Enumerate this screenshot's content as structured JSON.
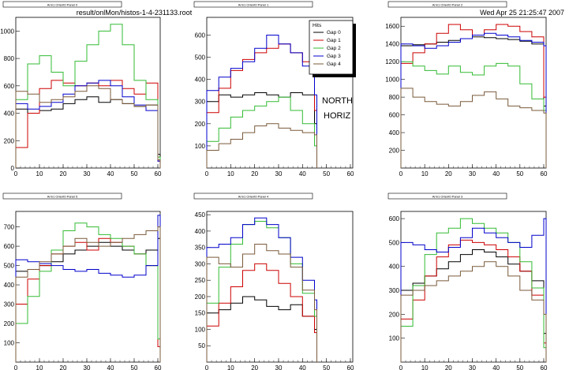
{
  "header": {
    "file": "result/onlMon/histos-1-4-231133.root",
    "date": "Wed Apr 25 21:25:47 2007"
  },
  "annotation": {
    "line1": "NORTH",
    "line2": "HORIZ"
  },
  "legend": {
    "title": "Hits",
    "entries": [
      "Gap 0",
      "Gap 1",
      "Gap 2",
      "Gap 3",
      "Gap 4"
    ],
    "colors": [
      "#000000",
      "#cc0000",
      "#33bb33",
      "#0000cc",
      "#7a5a3a"
    ]
  },
  "chart_data": [
    {
      "type": "line",
      "title": "Arm1 Orient0 Panel 0",
      "xlim": [
        0,
        61
      ],
      "ylim": [
        0,
        1100
      ],
      "xticks": [
        0,
        10,
        20,
        30,
        40,
        50,
        60
      ],
      "yticks": [
        0,
        200,
        400,
        600,
        800,
        1000
      ],
      "x": [
        0,
        5,
        10,
        15,
        20,
        25,
        30,
        35,
        40,
        45,
        50,
        55,
        60
      ],
      "series": [
        {
          "name": "Gap 0",
          "values": [
            430,
            400,
            420,
            430,
            470,
            500,
            520,
            480,
            500,
            470,
            450,
            460,
            100
          ]
        },
        {
          "name": "Gap 1",
          "values": [
            150,
            400,
            580,
            640,
            620,
            600,
            620,
            600,
            640,
            580,
            540,
            620,
            50
          ]
        },
        {
          "name": "Gap 2",
          "values": [
            500,
            760,
            820,
            700,
            600,
            780,
            900,
            1000,
            1050,
            900,
            640,
            500,
            80
          ]
        },
        {
          "name": "Gap 3",
          "values": [
            470,
            430,
            450,
            480,
            540,
            600,
            620,
            640,
            600,
            520,
            460,
            420,
            50
          ]
        },
        {
          "name": "Gap 4",
          "values": [
            560,
            540,
            480,
            500,
            520,
            560,
            600,
            580,
            500,
            470,
            450,
            460,
            60
          ]
        }
      ]
    },
    {
      "type": "line",
      "title": "Arm1 Orient0 Panel 1",
      "xlim": [
        0,
        61
      ],
      "ylim": [
        0,
        680
      ],
      "xticks": [
        0,
        10,
        20,
        30,
        40,
        50,
        60
      ],
      "yticks": [
        100,
        200,
        300,
        400,
        500,
        600
      ],
      "x": [
        0,
        5,
        10,
        15,
        20,
        25,
        30,
        35,
        40,
        45
      ],
      "series": [
        {
          "name": "Gap 0",
          "values": [
            300,
            330,
            320,
            330,
            340,
            330,
            320,
            340,
            330,
            200
          ]
        },
        {
          "name": "Gap 1",
          "values": [
            250,
            360,
            440,
            490,
            520,
            540,
            560,
            520,
            480,
            260
          ]
        },
        {
          "name": "Gap 2",
          "values": [
            120,
            180,
            230,
            260,
            280,
            300,
            320,
            260,
            200,
            100
          ]
        },
        {
          "name": "Gap 3",
          "values": [
            350,
            410,
            450,
            480,
            540,
            600,
            560,
            520,
            460,
            330
          ]
        },
        {
          "name": "Gap 4",
          "values": [
            80,
            110,
            130,
            160,
            190,
            200,
            180,
            170,
            160,
            150
          ]
        }
      ]
    },
    {
      "type": "line",
      "title": "Arm1 Orient0 Panel 2",
      "xlim": [
        0,
        61
      ],
      "ylim": [
        0,
        1700
      ],
      "xticks": [
        0,
        10,
        20,
        30,
        40,
        50,
        60
      ],
      "yticks": [
        200,
        400,
        600,
        800,
        1000,
        1200,
        1400,
        1600
      ],
      "x": [
        0,
        5,
        10,
        15,
        20,
        25,
        30,
        35,
        40,
        45,
        50,
        55,
        60
      ],
      "series": [
        {
          "name": "Gap 0",
          "values": [
            1380,
            1390,
            1400,
            1420,
            1440,
            1460,
            1480,
            1470,
            1460,
            1450,
            1430,
            1400,
            700
          ]
        },
        {
          "name": "Gap 1",
          "values": [
            1180,
            1300,
            1400,
            1520,
            1620,
            1560,
            1500,
            1560,
            1620,
            1600,
            1540,
            1480,
            800
          ]
        },
        {
          "name": "Gap 2",
          "values": [
            1200,
            1150,
            1100,
            1060,
            1150,
            1080,
            1050,
            1150,
            1180,
            1150,
            950,
            780,
            650
          ]
        },
        {
          "name": "Gap 3",
          "values": [
            1400,
            1380,
            1350,
            1380,
            1420,
            1460,
            1500,
            1520,
            1500,
            1480,
            1440,
            1420,
            1380
          ]
        },
        {
          "name": "Gap 4",
          "values": [
            900,
            800,
            750,
            720,
            700,
            750,
            820,
            860,
            780,
            700,
            680,
            650,
            620
          ]
        }
      ]
    },
    {
      "type": "line",
      "title": "Arm1 Orient0 Panel 5",
      "xlim": [
        0,
        61
      ],
      "ylim": [
        0,
        780
      ],
      "xticks": [
        0,
        10,
        20,
        30,
        40,
        50,
        60
      ],
      "yticks": [
        100,
        200,
        300,
        400,
        500,
        600,
        700
      ],
      "x": [
        0,
        5,
        10,
        15,
        20,
        25,
        30,
        35,
        40,
        45,
        50,
        55,
        60
      ],
      "series": [
        {
          "name": "Gap 0",
          "values": [
            470,
            480,
            500,
            520,
            560,
            580,
            600,
            620,
            600,
            580,
            560,
            580,
            640
          ]
        },
        {
          "name": "Gap 1",
          "values": [
            300,
            430,
            500,
            560,
            600,
            620,
            580,
            640,
            620,
            600,
            560,
            500,
            80
          ]
        },
        {
          "name": "Gap 2",
          "values": [
            200,
            340,
            470,
            580,
            680,
            720,
            700,
            660,
            640,
            600,
            560,
            500,
            120
          ]
        },
        {
          "name": "Gap 3",
          "values": [
            530,
            520,
            510,
            500,
            480,
            470,
            480,
            460,
            450,
            440,
            450,
            500,
            760
          ]
        },
        {
          "name": "Gap 4",
          "values": [
            440,
            480,
            520,
            560,
            600,
            640,
            620,
            600,
            620,
            640,
            660,
            680,
            700
          ]
        }
      ]
    },
    {
      "type": "line",
      "title": "Arm1 Orient0 Panel 4",
      "xlim": [
        0,
        61
      ],
      "ylim": [
        0,
        460
      ],
      "xticks": [
        0,
        10,
        20,
        30,
        40,
        50,
        60
      ],
      "yticks": [
        50,
        100,
        150,
        200,
        250,
        300,
        350,
        400,
        450
      ],
      "x": [
        0,
        5,
        10,
        15,
        20,
        25,
        30,
        35,
        40,
        45
      ],
      "series": [
        {
          "name": "Gap 0",
          "values": [
            150,
            160,
            180,
            200,
            190,
            170,
            160,
            175,
            140,
            100
          ]
        },
        {
          "name": "Gap 1",
          "values": [
            110,
            180,
            230,
            280,
            300,
            280,
            240,
            200,
            140,
            90
          ]
        },
        {
          "name": "Gap 2",
          "values": [
            180,
            290,
            360,
            420,
            430,
            410,
            380,
            300,
            210,
            140
          ]
        },
        {
          "name": "Gap 3",
          "values": [
            350,
            360,
            380,
            420,
            440,
            420,
            380,
            320,
            250,
            190
          ]
        },
        {
          "name": "Gap 4",
          "values": [
            320,
            300,
            290,
            330,
            360,
            340,
            330,
            290,
            220,
            160
          ]
        }
      ]
    },
    {
      "type": "line",
      "title": "Arm1 Orient0 Panel 3",
      "xlim": [
        0,
        61
      ],
      "ylim": [
        0,
        630
      ],
      "xticks": [
        0,
        10,
        20,
        30,
        40,
        50,
        60
      ],
      "yticks": [
        100,
        200,
        300,
        400,
        500,
        600
      ],
      "x": [
        0,
        5,
        10,
        15,
        20,
        25,
        30,
        35,
        40,
        45,
        50,
        55,
        60
      ],
      "series": [
        {
          "name": "Gap 0",
          "values": [
            300,
            330,
            360,
            390,
            420,
            450,
            470,
            460,
            440,
            410,
            380,
            340,
            120
          ]
        },
        {
          "name": "Gap 1",
          "values": [
            180,
            260,
            360,
            440,
            490,
            510,
            500,
            490,
            470,
            440,
            380,
            280,
            80
          ]
        },
        {
          "name": "Gap 2",
          "values": [
            150,
            320,
            450,
            540,
            560,
            600,
            580,
            560,
            540,
            500,
            420,
            310,
            60
          ]
        },
        {
          "name": "Gap 3",
          "values": [
            500,
            490,
            470,
            460,
            480,
            520,
            560,
            540,
            520,
            500,
            480,
            530,
            600
          ]
        },
        {
          "name": "Gap 4",
          "values": [
            280,
            300,
            320,
            340,
            360,
            380,
            400,
            420,
            400,
            360,
            300,
            260,
            200
          ]
        }
      ]
    }
  ]
}
